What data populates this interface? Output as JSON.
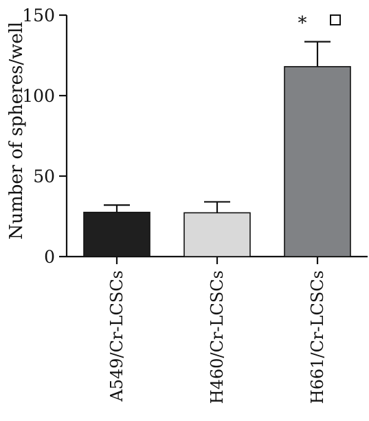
{
  "chart_data": {
    "type": "bar",
    "title": "",
    "xlabel": "",
    "ylabel": "Number of spheres/well",
    "ylim": [
      0,
      150
    ],
    "yticks": [
      0,
      50,
      100,
      150
    ],
    "grid": false,
    "categories": [
      "A549/Cr-LCSCs",
      "H460/Cr-LCSCs",
      "H661/Cr-LCSCs"
    ],
    "values": [
      27.5,
      27.2,
      118
    ],
    "error": [
      4.5,
      6.8,
      15.5
    ],
    "colors": [
      "#1f1f1f",
      "#d9d9d9",
      "#808285"
    ],
    "annotations": [
      {
        "category": "H661/Cr-LCSCs",
        "text": "*",
        "symbol": "open-square"
      }
    ]
  }
}
